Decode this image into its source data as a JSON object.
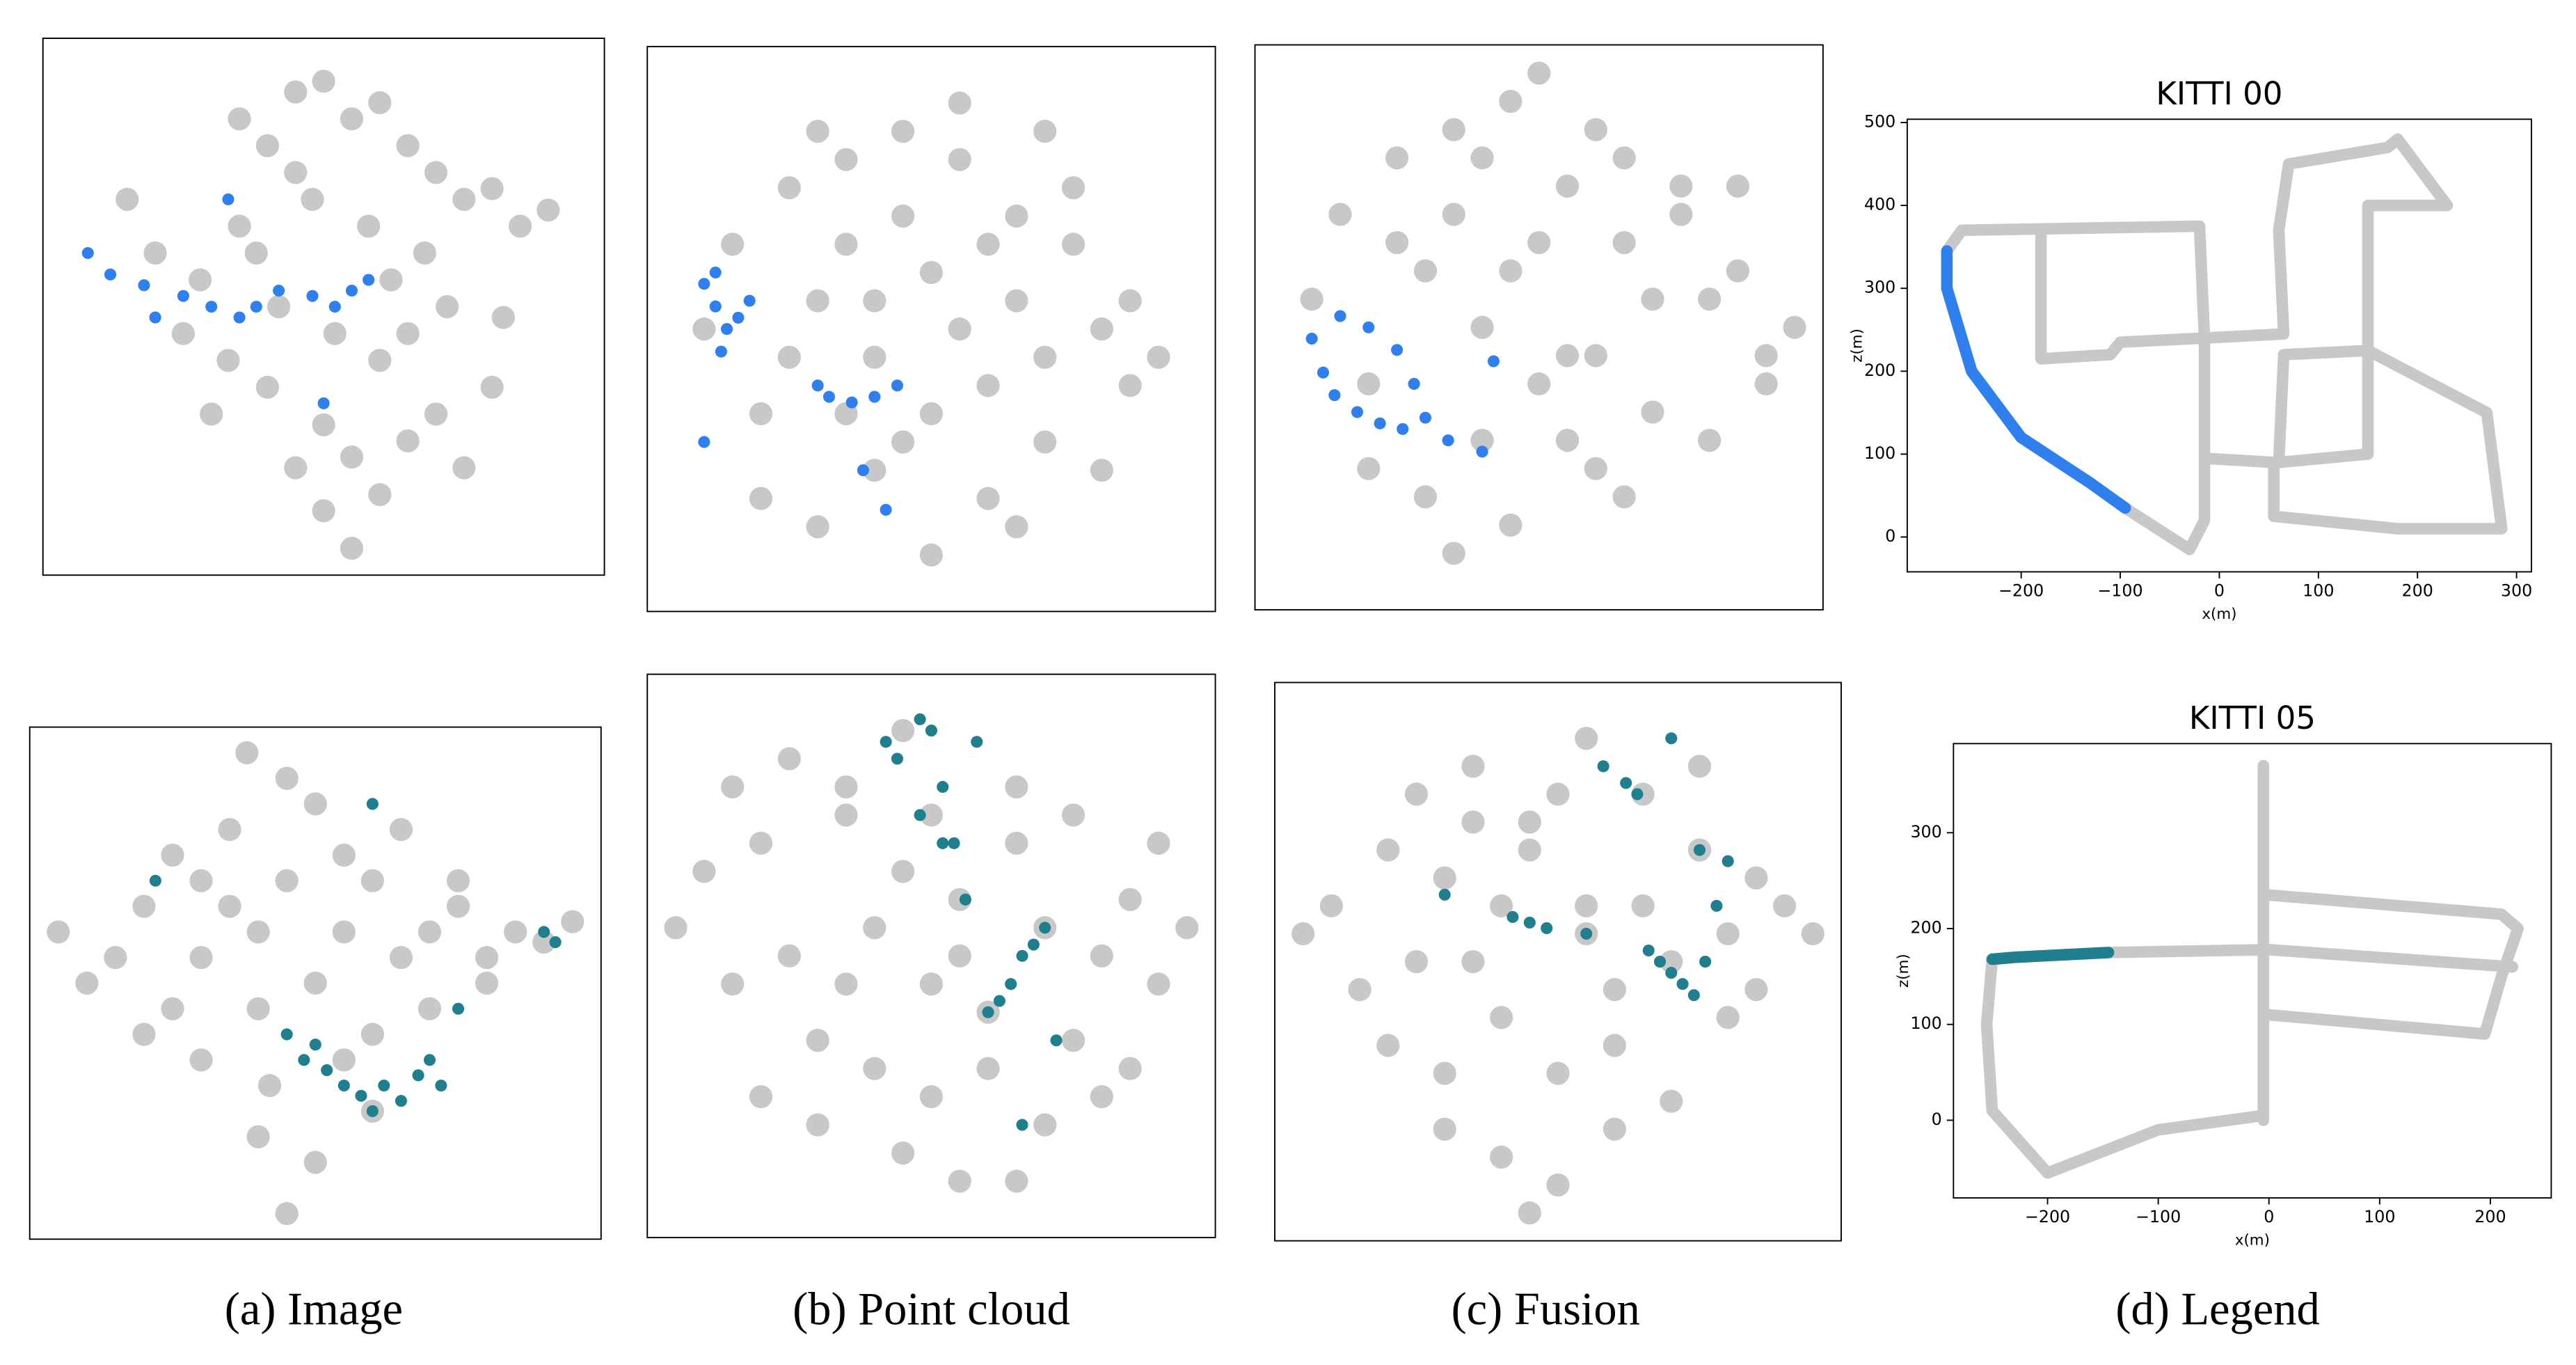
{
  "chart_data": [
    {
      "type": "scatter",
      "xlim": [
        0,
        100
      ],
      "ylim": [
        0,
        100
      ],
      "series": [
        {
          "color": "#c8c8c8",
          "x": [
            15,
            20,
            28,
            35,
            40,
            45,
            50,
            55,
            60,
            65,
            70,
            75,
            80,
            85,
            90,
            25,
            33,
            42,
            52,
            62,
            72,
            82,
            30,
            40,
            50,
            60,
            70,
            80,
            45,
            55,
            65,
            75,
            38,
            48,
            58,
            68,
            50,
            60,
            55,
            45,
            35,
            65
          ],
          "y": [
            70,
            60,
            55,
            65,
            80,
            90,
            92,
            85,
            88,
            80,
            75,
            70,
            72,
            65,
            68,
            45,
            40,
            50,
            45,
            55,
            50,
            48,
            30,
            35,
            28,
            40,
            30,
            35,
            20,
            22,
            25,
            20,
            60,
            70,
            65,
            60,
            12,
            15,
            5,
            75,
            85,
            45
          ]
        },
        {
          "color": "#2f7fef",
          "x": [
            8,
            12,
            18,
            25,
            30,
            35,
            38,
            42,
            48,
            52,
            55,
            33,
            58,
            50,
            20
          ],
          "y": [
            60,
            56,
            54,
            52,
            50,
            48,
            50,
            53,
            52,
            50,
            53,
            70,
            55,
            32,
            48
          ]
        }
      ]
    },
    {
      "type": "scatter",
      "xlim": [
        0,
        100
      ],
      "ylim": [
        0,
        100
      ],
      "series": [
        {
          "color": "#c8c8c8",
          "x": [
            10,
            15,
            20,
            25,
            30,
            35,
            40,
            45,
            50,
            55,
            60,
            65,
            70,
            75,
            80,
            85,
            90,
            20,
            30,
            40,
            50,
            60,
            70,
            80,
            25,
            35,
            45,
            55,
            65,
            75,
            85,
            30,
            40,
            50,
            60,
            70,
            45,
            55,
            35,
            65
          ],
          "y": [
            50,
            65,
            35,
            75,
            55,
            80,
            25,
            85,
            60,
            90,
            40,
            70,
            30,
            65,
            50,
            55,
            45,
            20,
            15,
            45,
            35,
            20,
            85,
            25,
            45,
            65,
            70,
            50,
            55,
            75,
            40,
            85,
            55,
            10,
            65,
            45,
            30,
            80,
            35,
            15
          ]
        },
        {
          "color": "#2f7fef",
          "x": [
            10,
            12,
            14,
            13,
            16,
            18,
            12,
            30,
            32,
            36,
            40,
            44,
            38,
            42,
            10
          ],
          "y": [
            58,
            54,
            50,
            46,
            52,
            55,
            60,
            40,
            38,
            37,
            38,
            40,
            25,
            18,
            30
          ]
        }
      ]
    },
    {
      "type": "scatter",
      "xlim": [
        0,
        100
      ],
      "ylim": [
        0,
        100
      ],
      "series": [
        {
          "color": "#c8c8c8",
          "x": [
            10,
            15,
            20,
            25,
            30,
            35,
            40,
            45,
            50,
            55,
            60,
            65,
            70,
            75,
            80,
            85,
            90,
            95,
            20,
            30,
            40,
            50,
            60,
            70,
            80,
            90,
            25,
            35,
            45,
            55,
            65,
            75,
            85,
            35,
            45,
            55,
            65,
            40,
            50,
            60
          ],
          "y": [
            55,
            70,
            40,
            80,
            60,
            85,
            30,
            90,
            65,
            75,
            45,
            80,
            35,
            70,
            55,
            60,
            45,
            50,
            25,
            20,
            50,
            40,
            25,
            55,
            30,
            40,
            65,
            70,
            60,
            45,
            65,
            75,
            75,
            10,
            15,
            30,
            20,
            80,
            95,
            85
          ]
        },
        {
          "color": "#2f7fef",
          "x": [
            10,
            12,
            14,
            18,
            22,
            26,
            30,
            34,
            15,
            20,
            25,
            40,
            42,
            28
          ],
          "y": [
            48,
            42,
            38,
            35,
            33,
            32,
            34,
            30,
            52,
            50,
            46,
            28,
            44,
            40
          ]
        }
      ]
    },
    {
      "type": "line",
      "title": "KITTI 00",
      "xlabel": "x(m)",
      "ylabel": "z(m)",
      "xlim": [
        -315,
        315
      ],
      "ylim": [
        -42,
        504
      ],
      "xticks": [
        {
          "value": -200,
          "label": "−200"
        },
        {
          "value": -100,
          "label": "−100"
        },
        0,
        100,
        200,
        300
      ],
      "yticks": [
        0,
        100,
        200,
        300,
        400,
        500
      ],
      "series": [
        {
          "color": "#c8c8c8",
          "x": [
            -275,
            -260,
            -20,
            -15,
            -15,
            -30,
            -95,
            null,
            -180,
            -180,
            -110,
            -100,
            -15,
            65,
            60,
            70,
            170,
            180,
            230,
            150,
            150,
            65,
            60,
            150,
            150,
            270,
            285,
            180,
            55,
            55,
            -15
          ],
          "y": [
            345,
            370,
            375,
            240,
            20,
            -15,
            35,
            null,
            370,
            215,
            220,
            235,
            240,
            245,
            370,
            450,
            470,
            480,
            400,
            400,
            225,
            220,
            90,
            100,
            225,
            150,
            10,
            10,
            25,
            90,
            95
          ]
        },
        {
          "color": "#2f7fef",
          "x": [
            -275,
            -275,
            -250,
            -200,
            -130,
            -95
          ],
          "y": [
            345,
            300,
            200,
            120,
            65,
            35
          ]
        }
      ]
    },
    {
      "type": "scatter",
      "xlim": [
        0,
        100
      ],
      "ylim": [
        0,
        100
      ],
      "series": [
        {
          "color": "#c8c8c8",
          "x": [
            5,
            10,
            15,
            20,
            25,
            30,
            35,
            40,
            45,
            50,
            55,
            60,
            65,
            70,
            75,
            80,
            85,
            90,
            95,
            20,
            30,
            40,
            50,
            60,
            70,
            80,
            25,
            35,
            45,
            55,
            65,
            75,
            40,
            50,
            60,
            45,
            38,
            42,
            55,
            30
          ],
          "y": [
            60,
            50,
            55,
            65,
            45,
            70,
            80,
            60,
            90,
            85,
            75,
            70,
            55,
            60,
            65,
            55,
            60,
            58,
            62,
            40,
            35,
            45,
            50,
            40,
            45,
            50,
            75,
            65,
            70,
            60,
            80,
            70,
            20,
            15,
            25,
            5,
            95,
            30,
            35,
            55
          ]
        },
        {
          "color": "#1f7f8f",
          "x": [
            48,
            52,
            55,
            58,
            60,
            62,
            65,
            68,
            70,
            72,
            50,
            45,
            90,
            92,
            75,
            22,
            60
          ],
          "y": [
            35,
            33,
            30,
            28,
            25,
            30,
            27,
            32,
            35,
            30,
            38,
            40,
            60,
            58,
            45,
            70,
            85
          ]
        }
      ]
    },
    {
      "type": "scatter",
      "xlim": [
        0,
        100
      ],
      "ylim": [
        0,
        100
      ],
      "series": [
        {
          "color": "#c8c8c8",
          "x": [
            5,
            10,
            15,
            20,
            25,
            30,
            35,
            40,
            45,
            50,
            55,
            60,
            65,
            70,
            75,
            80,
            85,
            90,
            95,
            20,
            30,
            40,
            50,
            60,
            70,
            80,
            90,
            25,
            35,
            45,
            55,
            65,
            75,
            85,
            35,
            45,
            55,
            65,
            15,
            50
          ],
          "y": [
            55,
            65,
            45,
            70,
            50,
            35,
            75,
            55,
            65,
            45,
            60,
            40,
            70,
            55,
            35,
            50,
            60,
            45,
            55,
            25,
            20,
            30,
            25,
            30,
            20,
            25,
            70,
            85,
            80,
            90,
            50,
            80,
            75,
            30,
            45,
            15,
            10,
            10,
            80,
            75
          ]
        },
        {
          "color": "#1f7f8f",
          "x": [
            42,
            44,
            48,
            50,
            52,
            54,
            56,
            58,
            60,
            62,
            64,
            66,
            68,
            70,
            72,
            48,
            52,
            66
          ],
          "y": [
            88,
            85,
            92,
            90,
            80,
            70,
            60,
            88,
            40,
            42,
            45,
            50,
            52,
            55,
            35,
            75,
            70,
            20
          ]
        }
      ]
    },
    {
      "type": "scatter",
      "xlim": [
        0,
        100
      ],
      "ylim": [
        0,
        100
      ],
      "series": [
        {
          "color": "#c8c8c8",
          "x": [
            5,
            10,
            15,
            20,
            25,
            30,
            35,
            40,
            45,
            50,
            55,
            60,
            65,
            70,
            75,
            80,
            85,
            90,
            95,
            20,
            30,
            40,
            50,
            60,
            70,
            80,
            25,
            35,
            45,
            55,
            65,
            75,
            85,
            40,
            50,
            45,
            35,
            60,
            55,
            30
          ],
          "y": [
            55,
            60,
            45,
            70,
            50,
            65,
            75,
            60,
            70,
            80,
            55,
            45,
            60,
            50,
            70,
            55,
            65,
            60,
            55,
            35,
            30,
            40,
            30,
            35,
            25,
            40,
            80,
            85,
            75,
            90,
            80,
            85,
            45,
            15,
            10,
            5,
            50,
            20,
            60,
            20
          ]
        },
        {
          "color": "#1f7f8f",
          "x": [
            30,
            42,
            45,
            48,
            55,
            58,
            62,
            64,
            66,
            68,
            70,
            72,
            74,
            76,
            78,
            80,
            75,
            70
          ],
          "y": [
            62,
            58,
            57,
            56,
            55,
            85,
            82,
            80,
            52,
            50,
            48,
            46,
            44,
            50,
            60,
            68,
            70,
            90
          ]
        }
      ]
    },
    {
      "type": "line",
      "title": "KITTI 05",
      "xlabel": "x(m)",
      "ylabel": "z(m)",
      "xlim": [
        -285,
        255
      ],
      "ylim": [
        -81,
        393
      ],
      "xticks": [
        {
          "value": -200,
          "label": "−200"
        },
        {
          "value": -100,
          "label": "−100"
        },
        0,
        100,
        200
      ],
      "yticks": [
        0,
        100,
        200,
        300
      ],
      "series": [
        {
          "color": "#c8c8c8",
          "x": [
            -5,
            -5,
            null,
            -250,
            -255,
            -250,
            -200,
            -100,
            -5,
            null,
            -145,
            0,
            220,
            null,
            0,
            210,
            225,
            210,
            195,
            0
          ],
          "y": [
            0,
            370,
            null,
            168,
            100,
            10,
            -55,
            -10,
            5,
            null,
            175,
            178,
            160,
            null,
            235,
            215,
            200,
            150,
            90,
            110
          ]
        },
        {
          "color": "#1f7f8f",
          "x": [
            -250,
            -230,
            -145
          ],
          "y": [
            168,
            170,
            175
          ]
        }
      ]
    }
  ],
  "captions": [
    "(a) Image",
    "(b) Point cloud",
    "(c) Fusion",
    "(d) Legend"
  ]
}
